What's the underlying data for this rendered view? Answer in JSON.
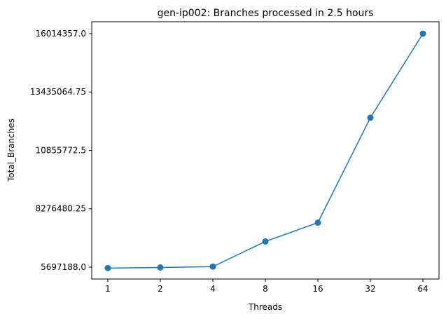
{
  "chart_data": {
    "type": "line",
    "title": "gen-ip002: Branches processed in 2.5 hours",
    "xlabel": "Threads",
    "ylabel": "Total_Branches",
    "categories": [
      "1",
      "2",
      "4",
      "8",
      "16",
      "32",
      "64"
    ],
    "series": [
      {
        "values": [
          5655000,
          5680000,
          5720000,
          6830000,
          7660000,
          12300000,
          16014357
        ],
        "color": "#1f77b4"
      }
    ],
    "yticks": [
      5697188.0,
      8276480.25,
      10855772.5,
      13435064.75,
      16014357.0
    ],
    "ytick_labels": [
      "5697188.0",
      "8276480.25",
      "10855772.5",
      "13435064.75",
      "16014357.0"
    ],
    "ylim": [
      5170000,
      16540000
    ],
    "grid": false,
    "legend": "none",
    "marker": "circle"
  }
}
